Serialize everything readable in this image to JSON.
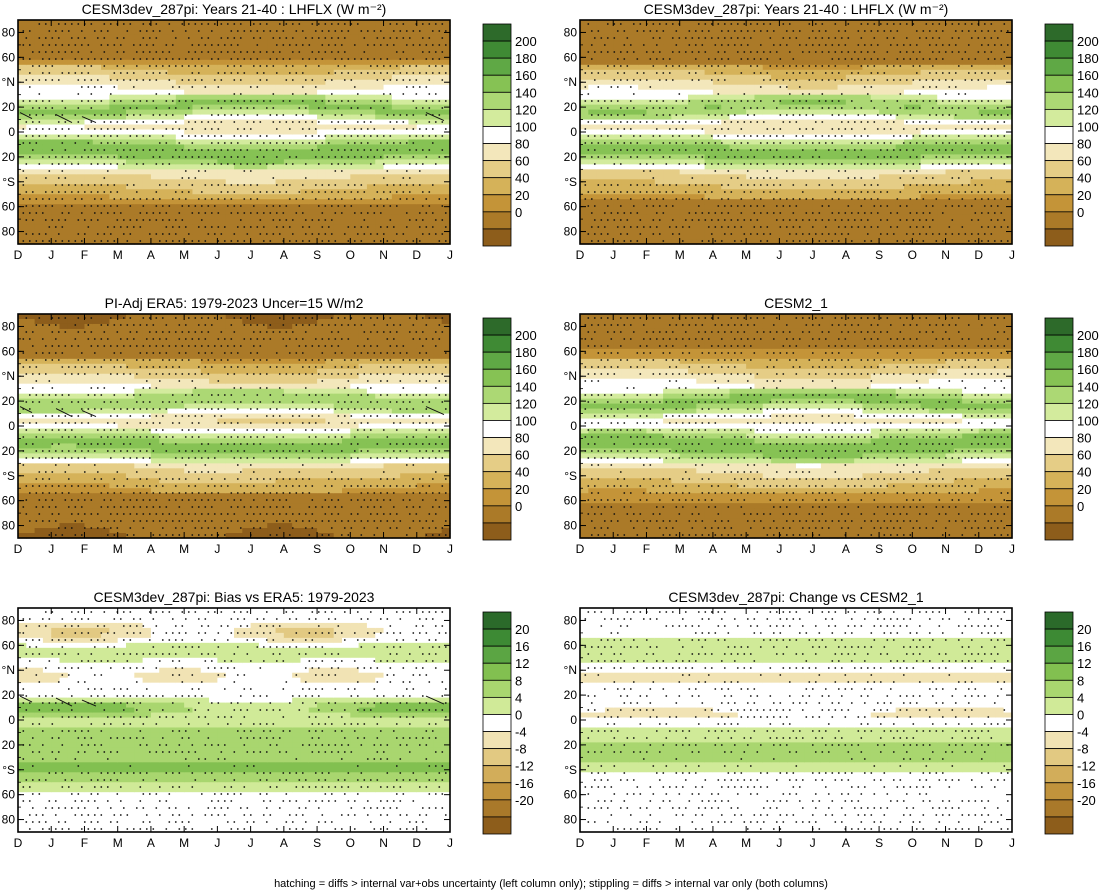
{
  "footer": "hatching = diffs > internal var+obs uncertainty (left column only); stippling = diffs > internal var only (both columns)",
  "colors": {
    "brown_dark": "#8a5a1c",
    "brown_mid": "#b98226",
    "tan": "#dcc07a",
    "cream": "#f2e7bf",
    "green_light": "#d4ec9a",
    "green_mid": "#9ccf5c",
    "green_dark": "#2f6b2c"
  },
  "chart_data": [
    {
      "type": "heatmap",
      "title": "CESM3dev_287pi: Years 21-40 : LHFLX (W m⁻²)",
      "variable": "LHFLX",
      "units": "W m-2",
      "x_ticks": [
        "D",
        "J",
        "F",
        "M",
        "A",
        "M",
        "J",
        "J",
        "A",
        "S",
        "O",
        "N",
        "D",
        "J"
      ],
      "y_ticks": [
        "80",
        "60",
        "°N",
        "20",
        "0",
        "20",
        "°S",
        "60",
        "80"
      ],
      "ylim": [
        -90,
        90
      ],
      "colorbar_labels": [
        "200",
        "180",
        "160",
        "140",
        "120",
        "100",
        "80",
        "60",
        "40",
        "20",
        "0"
      ],
      "colorbar_range": [
        -10,
        210
      ],
      "stippling": true,
      "hatching": true
    },
    {
      "type": "heatmap",
      "title": "CESM3dev_287pi: Years 21-40 : LHFLX (W m⁻²)",
      "variable": "LHFLX",
      "units": "W m-2",
      "x_ticks": [
        "D",
        "J",
        "F",
        "M",
        "A",
        "M",
        "J",
        "J",
        "A",
        "S",
        "O",
        "N",
        "D",
        "J"
      ],
      "y_ticks": [
        "80",
        "60",
        "°N",
        "20",
        "0",
        "20",
        "°S",
        "60",
        "80"
      ],
      "ylim": [
        -90,
        90
      ],
      "colorbar_labels": [
        "200",
        "180",
        "160",
        "140",
        "120",
        "100",
        "80",
        "60",
        "40",
        "20",
        "0"
      ],
      "colorbar_range": [
        -10,
        210
      ],
      "stippling": true,
      "hatching": false
    },
    {
      "type": "heatmap",
      "title": "PI-Adj ERA5: 1979-2023 Uncer=15 W/m2",
      "variable": "LHFLX",
      "units": "W m-2",
      "x_ticks": [
        "D",
        "J",
        "F",
        "M",
        "A",
        "M",
        "J",
        "J",
        "A",
        "S",
        "O",
        "N",
        "D",
        "J"
      ],
      "y_ticks": [
        "80",
        "60",
        "°N",
        "20",
        "0",
        "20",
        "°S",
        "60",
        "80"
      ],
      "ylim": [
        -90,
        90
      ],
      "colorbar_labels": [
        "200",
        "180",
        "160",
        "140",
        "120",
        "100",
        "80",
        "60",
        "40",
        "20",
        "0"
      ],
      "colorbar_range": [
        -10,
        210
      ],
      "stippling": true,
      "hatching": true
    },
    {
      "type": "heatmap",
      "title": "CESM2_1",
      "variable": "LHFLX",
      "units": "W m-2",
      "x_ticks": [
        "D",
        "J",
        "F",
        "M",
        "A",
        "M",
        "J",
        "J",
        "A",
        "S",
        "O",
        "N",
        "D",
        "J"
      ],
      "y_ticks": [
        "80",
        "60",
        "°N",
        "20",
        "0",
        "20",
        "°S",
        "60",
        "80"
      ],
      "ylim": [
        -90,
        90
      ],
      "colorbar_labels": [
        "200",
        "180",
        "160",
        "140",
        "120",
        "100",
        "80",
        "60",
        "40",
        "20",
        "0"
      ],
      "colorbar_range": [
        -10,
        210
      ],
      "stippling": true,
      "hatching": false
    },
    {
      "type": "heatmap",
      "title": "CESM3dev_287pi: Bias vs ERA5: 1979-2023",
      "variable": "LHFLX bias",
      "units": "W m-2",
      "x_ticks": [
        "D",
        "J",
        "F",
        "M",
        "A",
        "M",
        "J",
        "J",
        "A",
        "S",
        "O",
        "N",
        "D",
        "J"
      ],
      "y_ticks": [
        "80",
        "60",
        "°N",
        "20",
        "0",
        "20",
        "°S",
        "60",
        "80"
      ],
      "ylim": [
        -90,
        90
      ],
      "colorbar_labels": [
        "20",
        "16",
        "12",
        "8",
        "4",
        "0",
        "-4",
        "-8",
        "-12",
        "-16",
        "-20"
      ],
      "colorbar_range": [
        -22,
        22
      ],
      "stippling": true,
      "hatching": true
    },
    {
      "type": "heatmap",
      "title": "CESM3dev_287pi: Change vs CESM2_1",
      "variable": "LHFLX change",
      "units": "W m-2",
      "x_ticks": [
        "D",
        "J",
        "F",
        "M",
        "A",
        "M",
        "J",
        "J",
        "A",
        "S",
        "O",
        "N",
        "D",
        "J"
      ],
      "y_ticks": [
        "80",
        "60",
        "°N",
        "20",
        "0",
        "20",
        "°S",
        "60",
        "80"
      ],
      "ylim": [
        -90,
        90
      ],
      "colorbar_labels": [
        "20",
        "16",
        "12",
        "8",
        "4",
        "0",
        "-4",
        "-8",
        "-12",
        "-16",
        "-20"
      ],
      "colorbar_range": [
        -22,
        22
      ],
      "stippling": true,
      "hatching": false
    }
  ]
}
